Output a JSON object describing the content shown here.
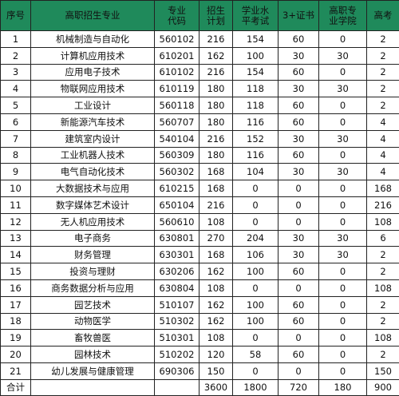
{
  "headers": [
    [
      "序号"
    ],
    [
      "高职招生专业"
    ],
    [
      "专业",
      "代码"
    ],
    [
      "招生",
      "计划"
    ],
    [
      "学业水",
      "平考试"
    ],
    [
      "3+证书"
    ],
    [
      "高职专",
      "业学院"
    ],
    [
      "高考"
    ]
  ],
  "rows": [
    [
      "1",
      "机械制造与自动化",
      "560102",
      "216",
      "154",
      "60",
      "0",
      "2"
    ],
    [
      "2",
      "计算机应用技术",
      "610201",
      "162",
      "100",
      "30",
      "30",
      "2"
    ],
    [
      "3",
      "应用电子技术",
      "610102",
      "216",
      "154",
      "60",
      "0",
      "2"
    ],
    [
      "4",
      "物联网应用技术",
      "610119",
      "180",
      "118",
      "30",
      "30",
      "2"
    ],
    [
      "5",
      "工业设计",
      "560118",
      "180",
      "118",
      "60",
      "0",
      "2"
    ],
    [
      "6",
      "新能源汽车技术",
      "560707",
      "180",
      "116",
      "60",
      "0",
      "4"
    ],
    [
      "7",
      "建筑室内设计",
      "540104",
      "216",
      "152",
      "30",
      "30",
      "4"
    ],
    [
      "8",
      "工业机器人技术",
      "560309",
      "180",
      "116",
      "60",
      "0",
      "4"
    ],
    [
      "9",
      "电气自动化技术",
      "560302",
      "168",
      "104",
      "30",
      "30",
      "4"
    ],
    [
      "10",
      "大数据技术与应用",
      "610215",
      "168",
      "0",
      "0",
      "0",
      "168"
    ],
    [
      "11",
      "数字媒体艺术设计",
      "650104",
      "216",
      "0",
      "0",
      "0",
      "216"
    ],
    [
      "12",
      "无人机应用技术",
      "560610",
      "108",
      "0",
      "0",
      "0",
      "108"
    ],
    [
      "13",
      "电子商务",
      "630801",
      "270",
      "204",
      "30",
      "30",
      "6"
    ],
    [
      "14",
      "财务管理",
      "630301",
      "168",
      "106",
      "30",
      "30",
      "2"
    ],
    [
      "15",
      "投资与理财",
      "630206",
      "162",
      "100",
      "60",
      "0",
      "2"
    ],
    [
      "16",
      "商务数据分析与应用",
      "630804",
      "108",
      "0",
      "0",
      "0",
      "108"
    ],
    [
      "17",
      "园艺技术",
      "510107",
      "162",
      "100",
      "60",
      "0",
      "2"
    ],
    [
      "18",
      "动物医学",
      "510302",
      "162",
      "100",
      "60",
      "0",
      "2"
    ],
    [
      "19",
      "畜牧兽医",
      "510301",
      "108",
      "0",
      "0",
      "0",
      "108"
    ],
    [
      "20",
      "园林技术",
      "510202",
      "120",
      "58",
      "60",
      "0",
      "2"
    ],
    [
      "21",
      "幼儿发展与健康管理",
      "690306",
      "150",
      "0",
      "0",
      "0",
      "150"
    ]
  ],
  "total": {
    "label": "合计",
    "values": [
      "3600",
      "1800",
      "720",
      "180",
      "900"
    ]
  }
}
